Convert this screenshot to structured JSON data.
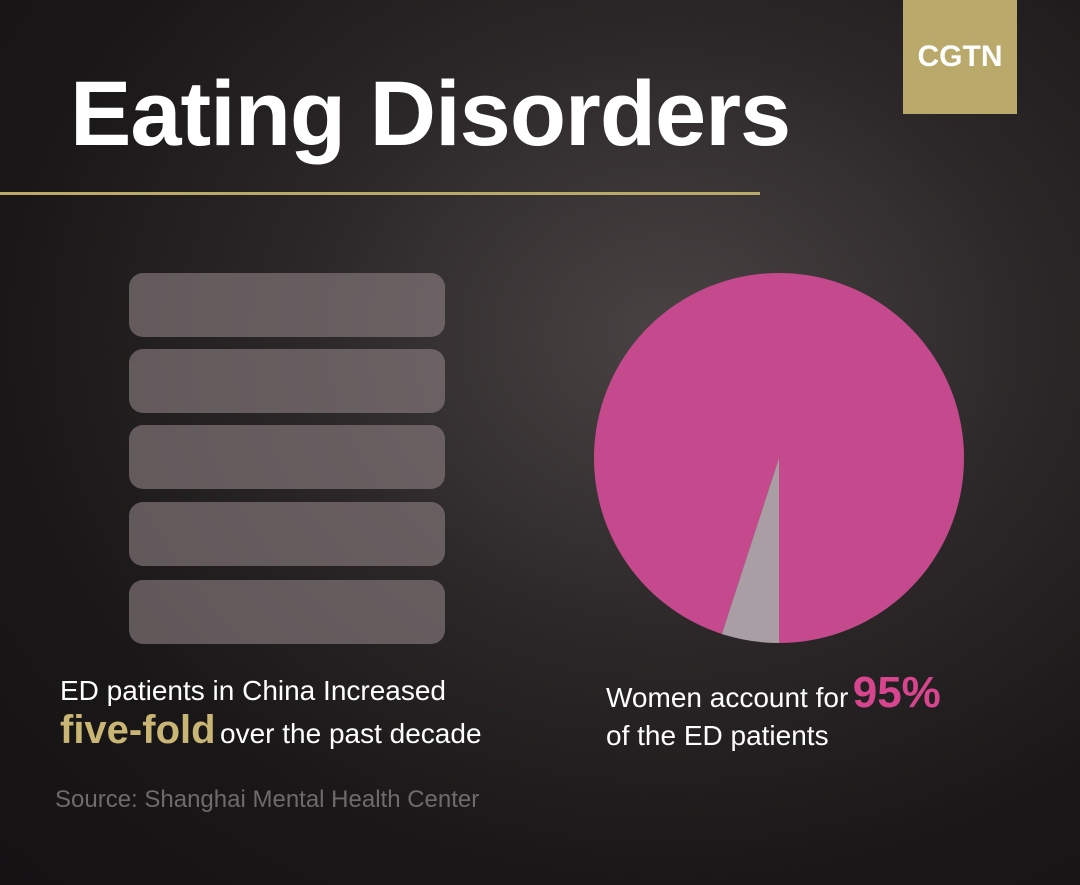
{
  "logo": "CGTN",
  "title": "Eating Disorders",
  "left_caption": {
    "line1": "ED patients in China Increased",
    "highlight": "five-fold",
    "rest": "over the past decade"
  },
  "chart_data": {
    "type": "pie",
    "values": [
      95,
      5
    ],
    "colors": [
      "#c54a8d",
      "#a99ea3"
    ],
    "value_labels": [
      "95%",
      null
    ]
  },
  "right_caption": {
    "before": "Women account for",
    "after": "of the ED patients"
  },
  "source": "Source: Shanghai Mental Health Center"
}
